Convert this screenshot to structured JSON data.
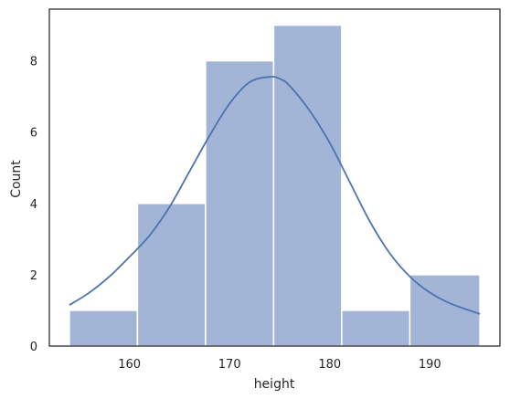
{
  "chart_data": {
    "type": "bar",
    "title": "",
    "xlabel": "height",
    "ylabel": "Count",
    "xlim": [
      152.0,
      197.0
    ],
    "ylim": [
      0,
      9.45
    ],
    "grid": false,
    "legend": "none",
    "bins": [
      {
        "start": 154.0,
        "end": 160.8,
        "count": 1
      },
      {
        "start": 160.8,
        "end": 167.6,
        "count": 4
      },
      {
        "start": 167.6,
        "end": 174.4,
        "count": 8
      },
      {
        "start": 174.4,
        "end": 181.2,
        "count": 9
      },
      {
        "start": 181.2,
        "end": 188.0,
        "count": 1
      },
      {
        "start": 188.0,
        "end": 195.0,
        "count": 2
      }
    ],
    "kde": {
      "x": [
        154,
        156,
        158,
        160,
        162,
        164,
        166,
        168,
        170,
        172,
        174,
        175,
        176,
        178,
        180,
        182,
        184,
        186,
        188,
        190,
        192,
        195
      ],
      "y": [
        1.15,
        1.5,
        1.95,
        2.5,
        3.1,
        3.9,
        4.9,
        5.9,
        6.8,
        7.4,
        7.55,
        7.5,
        7.3,
        6.6,
        5.7,
        4.6,
        3.5,
        2.6,
        1.95,
        1.5,
        1.2,
        0.9
      ]
    },
    "x_ticks": [
      160,
      170,
      180,
      190
    ],
    "y_ticks": [
      0,
      2,
      4,
      6,
      8
    ],
    "colors": {
      "bar_fill": "#a2b5d7",
      "bar_edge": "#ffffff",
      "kde_line": "#4c72b0",
      "axis": "#262626"
    }
  }
}
